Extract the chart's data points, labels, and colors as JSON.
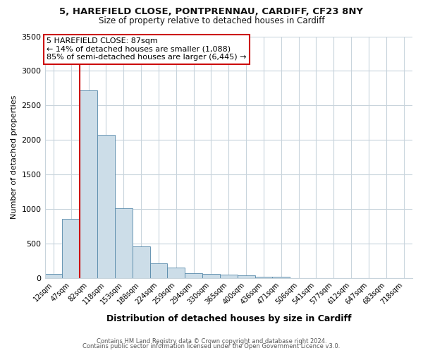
{
  "title_line1": "5, HAREFIELD CLOSE, PONTPRENNAU, CARDIFF, CF23 8NY",
  "title_line2": "Size of property relative to detached houses in Cardiff",
  "xlabel": "Distribution of detached houses by size in Cardiff",
  "ylabel": "Number of detached properties",
  "bar_labels": [
    "12sqm",
    "47sqm",
    "82sqm",
    "118sqm",
    "153sqm",
    "188sqm",
    "224sqm",
    "259sqm",
    "294sqm",
    "330sqm",
    "365sqm",
    "400sqm",
    "436sqm",
    "471sqm",
    "506sqm",
    "541sqm",
    "577sqm",
    "612sqm",
    "647sqm",
    "683sqm",
    "718sqm"
  ],
  "bar_values": [
    55,
    850,
    2720,
    2070,
    1010,
    455,
    205,
    145,
    65,
    55,
    50,
    40,
    20,
    15,
    0,
    0,
    0,
    0,
    0,
    0,
    0
  ],
  "bar_color": "#ccdde8",
  "bar_edge_color": "#5588aa",
  "vline_color": "#cc0000",
  "ylim": [
    0,
    3500
  ],
  "yticks": [
    0,
    500,
    1000,
    1500,
    2000,
    2500,
    3000,
    3500
  ],
  "annotation_title": "5 HAREFIELD CLOSE: 87sqm",
  "annotation_line1": "← 14% of detached houses are smaller (1,088)",
  "annotation_line2": "85% of semi-detached houses are larger (6,445) →",
  "annotation_box_color": "#ffffff",
  "annotation_box_edge": "#cc0000",
  "footer_line1": "Contains HM Land Registry data © Crown copyright and database right 2024.",
  "footer_line2": "Contains public sector information licensed under the Open Government Licence v3.0.",
  "background_color": "#ffffff",
  "grid_color": "#c8d4dc"
}
